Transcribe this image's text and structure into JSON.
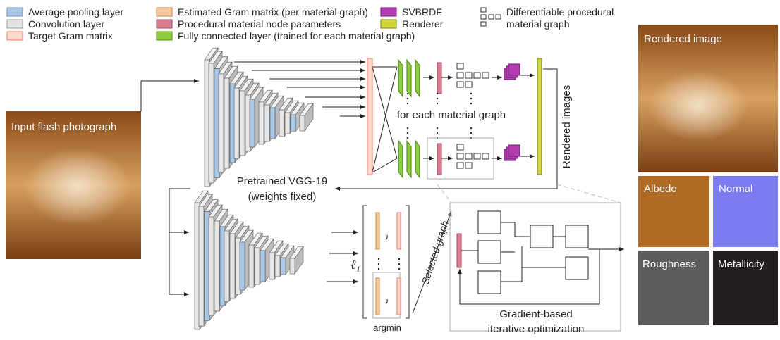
{
  "legend": {
    "items": [
      {
        "label": "Average pooling layer"
      },
      {
        "label": "Convolution layer"
      },
      {
        "label": "Target Gram matrix"
      },
      {
        "label": "Estimated Gram matrix (per material graph)"
      },
      {
        "label": "Procedural material node parameters"
      },
      {
        "label": "Fully connected layer (trained for each material graph)"
      },
      {
        "label": "SVBRDF"
      },
      {
        "label": "Renderer"
      },
      {
        "label_lines": [
          "Differentiable procedural",
          "material graph"
        ]
      }
    ]
  },
  "labels": {
    "input": "Input flash photograph",
    "vgg_lines": [
      "Pretrained VGG-19",
      "(weights fixed)"
    ],
    "for_each": "for each material graph",
    "rendered_images": "Rendered images",
    "selected_graph": "Selected graph",
    "l1": "ℓ₁",
    "argmin": "argmin",
    "optimization_lines": [
      "Gradient-based",
      "iterative optimization"
    ]
  },
  "outputs": {
    "rendered": "Rendered image",
    "albedo": "Albedo",
    "normal": "Normal",
    "roughness": "Roughness",
    "metallicity": "Metallicity"
  }
}
